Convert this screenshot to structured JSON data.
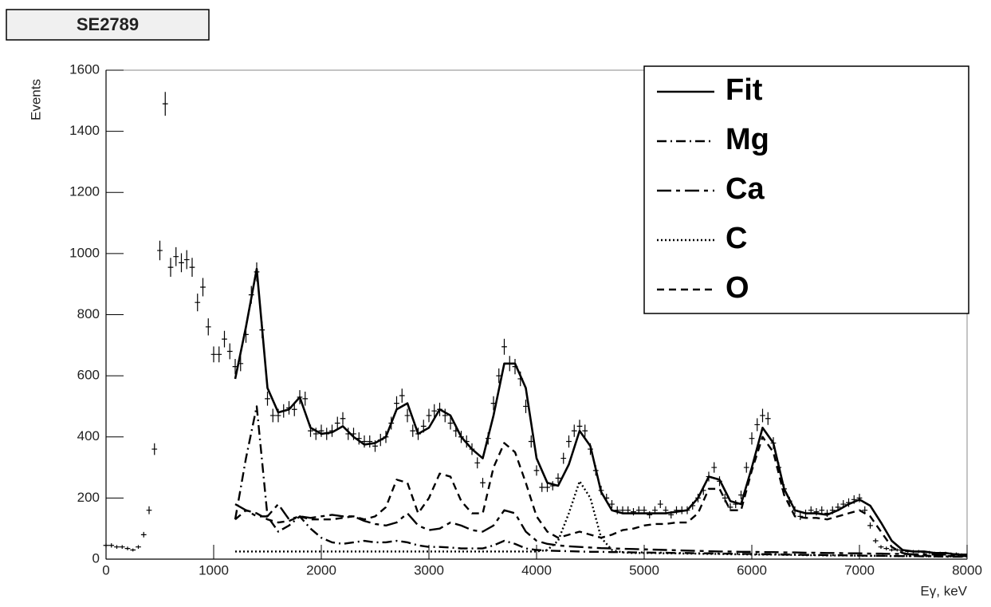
{
  "chart_data": {
    "type": "spectrum-fit",
    "title": "SE2789",
    "ylabel": "Events",
    "xlabel": "Eγ, keV",
    "xlim": [
      0,
      8000
    ],
    "ylim": [
      0,
      1600
    ],
    "xticks": [
      0,
      1000,
      2000,
      3000,
      4000,
      5000,
      6000,
      7000,
      8000
    ],
    "yticks": [
      0,
      200,
      400,
      600,
      800,
      1000,
      1200,
      1400,
      1600
    ],
    "legend": "top-right",
    "points": {
      "color": "#000000",
      "xerr": 25,
      "x": [
        0,
        50,
        100,
        150,
        200,
        250,
        300,
        350,
        400,
        450,
        500,
        550,
        600,
        650,
        700,
        750,
        800,
        850,
        900,
        950,
        1000,
        1050,
        1100,
        1150,
        1200,
        1250,
        1300,
        1350,
        1400,
        1450,
        1500,
        1550,
        1600,
        1650,
        1700,
        1750,
        1800,
        1850,
        1900,
        1950,
        2000,
        2050,
        2100,
        2150,
        2200,
        2250,
        2300,
        2350,
        2400,
        2450,
        2500,
        2550,
        2600,
        2650,
        2700,
        2750,
        2800,
        2850,
        2900,
        2950,
        3000,
        3050,
        3100,
        3150,
        3200,
        3250,
        3300,
        3350,
        3400,
        3450,
        3500,
        3550,
        3600,
        3650,
        3700,
        3750,
        3800,
        3850,
        3900,
        3950,
        4000,
        4050,
        4100,
        4150,
        4200,
        4250,
        4300,
        4350,
        4400,
        4450,
        4500,
        4550,
        4600,
        4650,
        4700,
        4750,
        4800,
        4850,
        4900,
        4950,
        5000,
        5050,
        5100,
        5150,
        5200,
        5250,
        5300,
        5350,
        5400,
        5450,
        5500,
        5550,
        5600,
        5650,
        5700,
        5750,
        5800,
        5850,
        5900,
        5950,
        6000,
        6050,
        6100,
        6150,
        6200,
        6250,
        6300,
        6350,
        6400,
        6450,
        6500,
        6550,
        6600,
        6650,
        6700,
        6750,
        6800,
        6850,
        6900,
        6950,
        7000,
        7050,
        7100,
        7150,
        7200,
        7250,
        7300,
        7350,
        7400,
        7450,
        7500,
        7550,
        7600,
        7650,
        7700,
        7750,
        7800,
        7850,
        7900,
        7950
      ],
      "values": [
        45,
        45,
        40,
        40,
        35,
        30,
        40,
        80,
        160,
        360,
        1010,
        1490,
        955,
        990,
        970,
        980,
        955,
        840,
        890,
        760,
        670,
        670,
        720,
        680,
        630,
        640,
        735,
        865,
        940,
        750,
        525,
        470,
        470,
        485,
        495,
        490,
        530,
        525,
        420,
        410,
        420,
        410,
        420,
        445,
        460,
        410,
        410,
        395,
        385,
        385,
        370,
        390,
        400,
        445,
        510,
        535,
        470,
        420,
        410,
        435,
        470,
        485,
        490,
        470,
        445,
        420,
        400,
        385,
        360,
        315,
        250,
        395,
        510,
        600,
        695,
        640,
        630,
        590,
        500,
        385,
        290,
        235,
        235,
        240,
        265,
        330,
        385,
        420,
        435,
        420,
        360,
        290,
        225,
        200,
        180,
        160,
        160,
        160,
        155,
        160,
        160,
        145,
        160,
        180,
        160,
        145,
        160,
        160,
        160,
        175,
        200,
        225,
        270,
        300,
        255,
        200,
        170,
        180,
        210,
        300,
        395,
        440,
        470,
        460,
        380,
        300,
        230,
        190,
        160,
        140,
        150,
        160,
        155,
        160,
        150,
        160,
        170,
        180,
        185,
        195,
        200,
        160,
        110,
        60,
        40,
        35,
        30,
        30,
        28,
        25,
        25,
        25,
        22,
        22,
        20,
        20,
        20,
        18,
        18,
        15
      ],
      "errors": [
        7,
        7,
        6,
        6,
        6,
        5,
        6,
        9,
        13,
        19,
        32,
        39,
        31,
        31,
        31,
        31,
        31,
        29,
        30,
        28,
        26,
        26,
        27,
        26,
        25,
        25,
        27,
        29,
        31,
        27,
        23,
        22,
        22,
        22,
        22,
        22,
        23,
        23,
        20,
        20,
        20,
        20,
        20,
        21,
        21,
        20,
        20,
        20,
        20,
        20,
        19,
        20,
        20,
        21,
        23,
        23,
        22,
        20,
        20,
        21,
        22,
        22,
        22,
        22,
        21,
        20,
        20,
        20,
        19,
        18,
        16,
        20,
        23,
        24,
        26,
        25,
        25,
        24,
        22,
        20,
        17,
        15,
        15,
        15,
        16,
        18,
        20,
        20,
        21,
        20,
        19,
        17,
        15,
        14,
        13,
        13,
        13,
        13,
        12,
        13,
        13,
        12,
        13,
        13,
        13,
        12,
        13,
        13,
        13,
        13,
        14,
        15,
        16,
        17,
        16,
        14,
        13,
        13,
        14,
        17,
        20,
        21,
        22,
        21,
        19,
        17,
        15,
        14,
        13,
        12,
        12,
        13,
        12,
        13,
        12,
        13,
        13,
        13,
        14,
        14,
        14,
        13,
        10,
        8,
        6,
        6,
        5,
        5,
        5,
        5,
        5,
        5,
        5,
        5,
        4,
        4,
        4,
        4,
        4,
        4
      ]
    },
    "curve_x": [
      1200,
      1300,
      1400,
      1500,
      1600,
      1700,
      1800,
      1900,
      2000,
      2100,
      2200,
      2300,
      2400,
      2500,
      2600,
      2700,
      2800,
      2900,
      3000,
      3100,
      3200,
      3300,
      3400,
      3500,
      3600,
      3700,
      3800,
      3900,
      4000,
      4100,
      4200,
      4300,
      4400,
      4500,
      4600,
      4700,
      4800,
      4900,
      5000,
      5100,
      5200,
      5300,
      5400,
      5500,
      5600,
      5700,
      5800,
      5900,
      6000,
      6100,
      6200,
      6300,
      6400,
      6500,
      6600,
      6700,
      6800,
      6900,
      7000,
      7100,
      7200,
      7300,
      7400,
      7500,
      7600,
      7700,
      7800,
      7900,
      8000
    ],
    "series": [
      {
        "name": "Fit",
        "color": "#000000",
        "dash": "solid",
        "values": [
          590,
          760,
          950,
          560,
          480,
          490,
          530,
          430,
          410,
          415,
          435,
          400,
          375,
          380,
          400,
          490,
          510,
          410,
          430,
          490,
          470,
          400,
          360,
          330,
          470,
          640,
          640,
          560,
          330,
          250,
          240,
          310,
          420,
          370,
          220,
          160,
          150,
          150,
          150,
          150,
          150,
          155,
          160,
          200,
          270,
          260,
          190,
          180,
          300,
          430,
          380,
          230,
          160,
          150,
          150,
          145,
          160,
          180,
          195,
          175,
          120,
          60,
          30,
          25,
          25,
          20,
          20,
          15,
          15
        ]
      },
      {
        "name": "Mg",
        "color": "#000000",
        "dash": "dashdot",
        "values": [
          130,
          330,
          500,
          140,
          90,
          110,
          140,
          100,
          70,
          55,
          50,
          55,
          60,
          55,
          55,
          60,
          55,
          45,
          40,
          40,
          38,
          35,
          35,
          35,
          45,
          60,
          50,
          35,
          30,
          28,
          27,
          26,
          25,
          24,
          24,
          23,
          23,
          22,
          22,
          21,
          21,
          20,
          20,
          19,
          19,
          18,
          18,
          17,
          17,
          16,
          16,
          15,
          15,
          14,
          14,
          13,
          13,
          12,
          12,
          11,
          11,
          10,
          10,
          10,
          9,
          9,
          8,
          8,
          8
        ]
      },
      {
        "name": "Ca",
        "color": "#000000",
        "dash": "longdash",
        "values": [
          180,
          160,
          140,
          140,
          180,
          130,
          140,
          135,
          140,
          145,
          140,
          140,
          125,
          115,
          110,
          120,
          150,
          110,
          95,
          100,
          120,
          110,
          95,
          90,
          110,
          160,
          150,
          90,
          60,
          50,
          45,
          42,
          40,
          38,
          36,
          35,
          34,
          33,
          32,
          31,
          30,
          29,
          28,
          27,
          26,
          25,
          25,
          24,
          24,
          23,
          23,
          22,
          22,
          21,
          21,
          20,
          20,
          19,
          19,
          18,
          18,
          17,
          17,
          16,
          16,
          15,
          15,
          14,
          14
        ]
      },
      {
        "name": "C",
        "color": "#000000",
        "dash": "dotted",
        "values": [
          25,
          25,
          25,
          25,
          25,
          25,
          25,
          25,
          25,
          25,
          25,
          25,
          25,
          25,
          25,
          25,
          25,
          25,
          25,
          25,
          25,
          25,
          25,
          25,
          25,
          25,
          25,
          25,
          25,
          30,
          60,
          150,
          255,
          200,
          70,
          30,
          22,
          20,
          20,
          20,
          19,
          19,
          18,
          18,
          17,
          17,
          16,
          16,
          15,
          15,
          15,
          14,
          14,
          13,
          13,
          12,
          12,
          12,
          11,
          11,
          11,
          10,
          10,
          10,
          10,
          9,
          9,
          9,
          9
        ]
      },
      {
        "name": "O",
        "color": "#000000",
        "dash": "dashed",
        "values": [
          130,
          160,
          150,
          130,
          120,
          125,
          140,
          130,
          130,
          130,
          135,
          140,
          130,
          140,
          170,
          260,
          250,
          150,
          200,
          280,
          270,
          190,
          150,
          150,
          300,
          380,
          350,
          250,
          140,
          90,
          70,
          80,
          90,
          80,
          70,
          80,
          95,
          100,
          110,
          115,
          115,
          120,
          120,
          150,
          230,
          230,
          160,
          160,
          290,
          400,
          350,
          210,
          140,
          135,
          135,
          130,
          140,
          150,
          160,
          140,
          90,
          40,
          20,
          15,
          12,
          10,
          10,
          10,
          10
        ]
      }
    ]
  }
}
